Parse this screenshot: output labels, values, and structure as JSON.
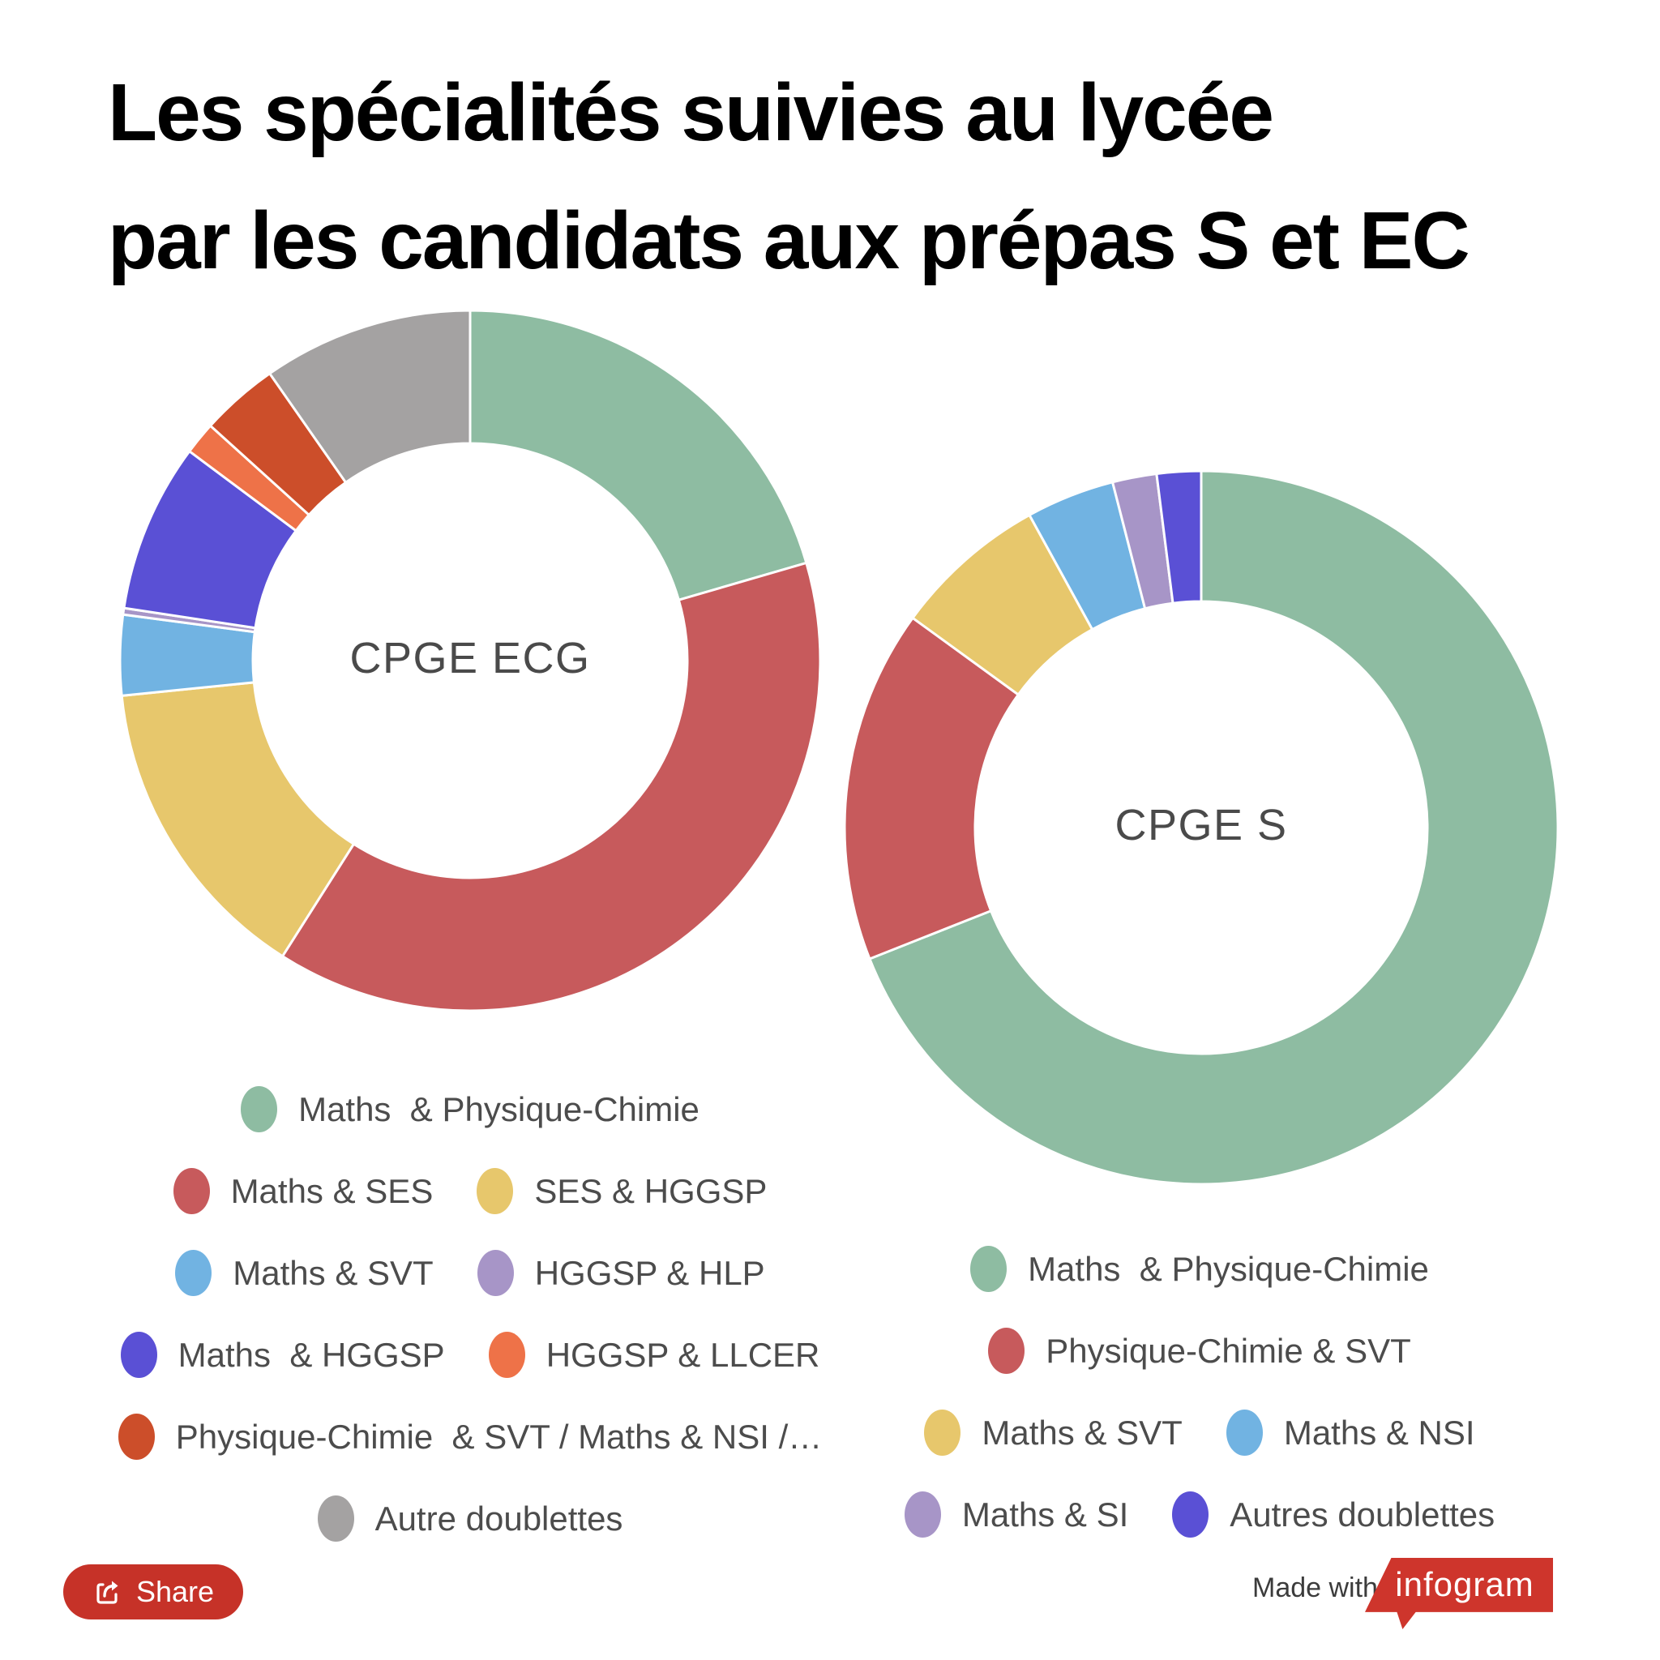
{
  "title": {
    "line1": "Les spécialités suivies au lycée",
    "line2": "par les candidats aux prépas S et EC"
  },
  "chart_data": [
    {
      "type": "pie",
      "subtype": "donut",
      "center_label": "CPGE ECG",
      "unit": "percent of candidates",
      "legend_position": "below",
      "segments": [
        {
          "label": "Maths  & Physique-Chimie",
          "value": 20.5,
          "color": "#8EBCA2"
        },
        {
          "label": "Maths & SES",
          "value": 38.5,
          "color": "#C75A5C"
        },
        {
          "label": "SES & HGGSP",
          "value": 14.4,
          "color": "#E7C76C"
        },
        {
          "label": "Maths & SVT",
          "value": 3.7,
          "color": "#71B3E2"
        },
        {
          "label": "HGGSP & HLP",
          "value": 0.3,
          "color": "#A795C7"
        },
        {
          "label": "Maths  & HGGSP",
          "value": 7.8,
          "color": "#5A50D5"
        },
        {
          "label": "HGGSP & LLCER",
          "value": 1.5,
          "color": "#EE7248"
        },
        {
          "label": "Physique-Chimie  & SVT / Maths & NSI /…",
          "value": 3.6,
          "color": "#CC4E2A"
        },
        {
          "label": "Autre doublettes",
          "value": 9.7,
          "color": "#A4A2A2"
        }
      ],
      "legend_rows": [
        [
          0
        ],
        [
          1,
          2
        ],
        [
          3,
          4
        ],
        [
          5,
          6
        ],
        [
          7
        ],
        [
          8
        ]
      ]
    },
    {
      "type": "pie",
      "subtype": "donut",
      "center_label": "CPGE S",
      "unit": "percent of candidates",
      "legend_position": "below",
      "segments": [
        {
          "label": "Maths  & Physique-Chimie",
          "value": 69,
          "color": "#8EBCA2"
        },
        {
          "label": "Physique-Chimie & SVT",
          "value": 16,
          "color": "#C75A5C"
        },
        {
          "label": "Maths & SVT",
          "value": 7,
          "color": "#E7C76C"
        },
        {
          "label": "Maths & NSI",
          "value": 4,
          "color": "#71B3E2"
        },
        {
          "label": "Maths & SI",
          "value": 2,
          "color": "#A795C7"
        },
        {
          "label": "Autres doublettes",
          "value": 2,
          "color": "#5A50D5"
        }
      ],
      "legend_rows": [
        [
          0
        ],
        [
          1
        ],
        [
          2,
          3
        ],
        [
          4,
          5
        ]
      ]
    }
  ],
  "footer": {
    "share_label": "Share",
    "share_color": "#C63228",
    "made_with": "Made with",
    "brand": "infogram",
    "brand_color": "#CE352C"
  }
}
